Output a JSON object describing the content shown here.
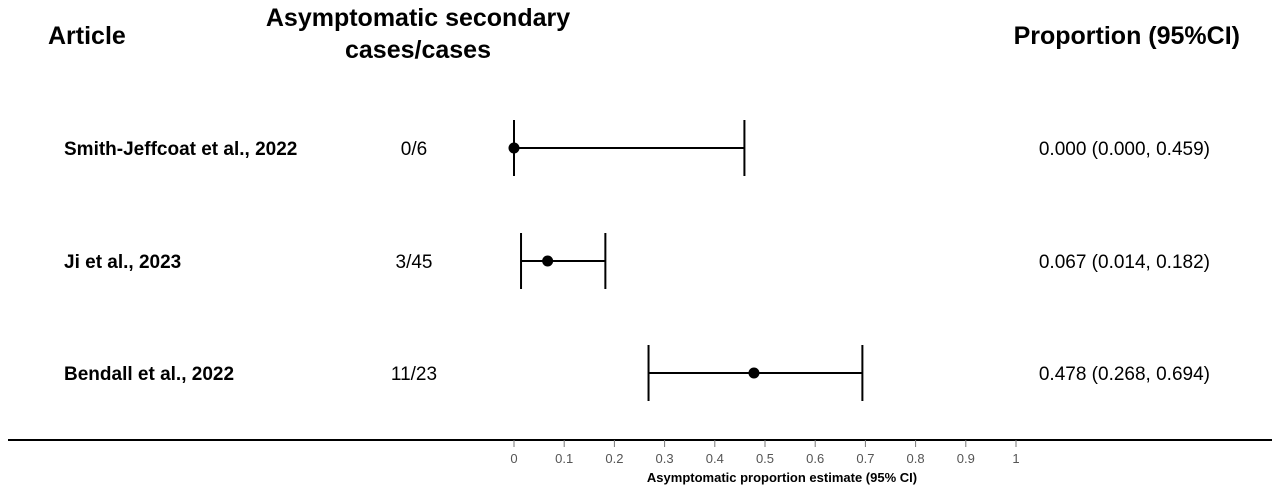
{
  "headers": {
    "article": "Article",
    "cases_line1": "Asymptomatic secondary",
    "cases_line2": "cases/cases",
    "proportion": "Proportion (95%CI)"
  },
  "chart_data": {
    "type": "forest",
    "title": "",
    "xlabel": "Asymptomatic proportion estimate (95% CI)",
    "ylabel": "",
    "xlim": [
      0,
      1
    ],
    "x_ticks": [
      0,
      0.1,
      0.2,
      0.3,
      0.4,
      0.5,
      0.6,
      0.7,
      0.8,
      0.9,
      1
    ],
    "x_tick_labels": [
      "0",
      "0.1",
      "0.2",
      "0.3",
      "0.4",
      "0.5",
      "0.6",
      "0.7",
      "0.8",
      "0.9",
      "1"
    ],
    "grid": false,
    "rows": [
      {
        "article": "Smith-Jeffcoat et al., 2022",
        "cases": "0/6",
        "estimate": 0.0,
        "lower": 0.0,
        "upper": 0.459,
        "label": "0.000 (0.000, 0.459)"
      },
      {
        "article": "Ji et al., 2023",
        "cases": "3/45",
        "estimate": 0.067,
        "lower": 0.014,
        "upper": 0.182,
        "label": "0.067 (0.014, 0.182)"
      },
      {
        "article": "Bendall et al., 2022",
        "cases": "11/23",
        "estimate": 0.478,
        "lower": 0.268,
        "upper": 0.694,
        "label": "0.478 (0.268, 0.694)"
      }
    ]
  }
}
